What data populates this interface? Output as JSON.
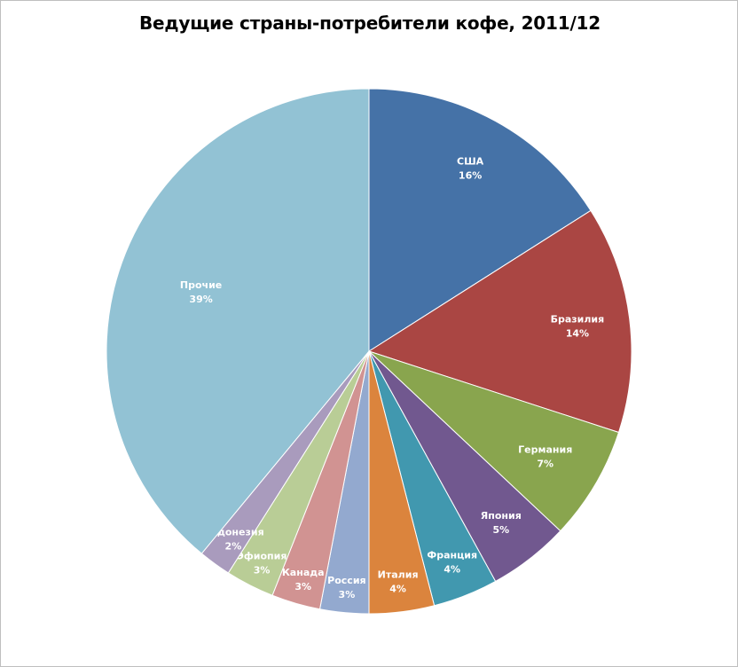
{
  "chart_data": {
    "type": "pie",
    "title": "Ведущие страны-потребители кофе, 2011/12",
    "start_angle_deg": 0,
    "direction": "clockwise",
    "slices": [
      {
        "label": "США",
        "value": 16,
        "pct_label": "16%",
        "color": "#4572a7"
      },
      {
        "label": "Бразилия",
        "value": 14,
        "pct_label": "14%",
        "color": "#aa4643"
      },
      {
        "label": "Германия",
        "value": 7,
        "pct_label": "7%",
        "color": "#89a54e"
      },
      {
        "label": "Япония",
        "value": 5,
        "pct_label": "5%",
        "color": "#71588f"
      },
      {
        "label": "Франция",
        "value": 4,
        "pct_label": "4%",
        "color": "#4198af"
      },
      {
        "label": "Италия",
        "value": 4,
        "pct_label": "4%",
        "color": "#db843d"
      },
      {
        "label": "Россия",
        "value": 3,
        "pct_label": "3%",
        "color": "#93a9cf"
      },
      {
        "label": "Канада",
        "value": 3,
        "pct_label": "3%",
        "color": "#d19392"
      },
      {
        "label": "Эфиопия",
        "value": 3,
        "pct_label": "3%",
        "color": "#b9cd96"
      },
      {
        "label": "Индонезия",
        "value": 2,
        "pct_label": "2%",
        "color": "#a99bbd"
      },
      {
        "label": "Прочие",
        "value": 39,
        "pct_label": "39%",
        "color": "#92c2d4"
      }
    ]
  }
}
